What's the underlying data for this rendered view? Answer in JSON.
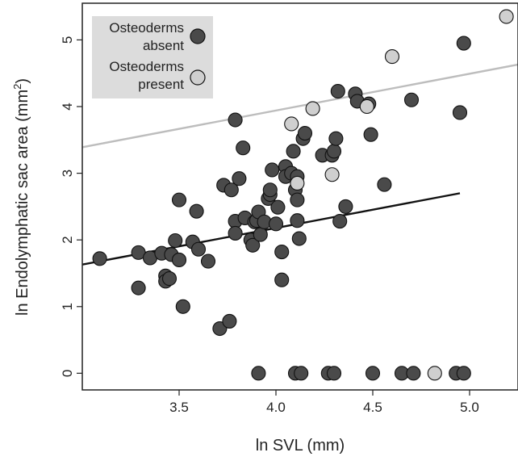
{
  "chart_data": {
    "type": "scatter",
    "xlabel": "ln SVL (mm)",
    "ylabel": {
      "prefix": "ln Endolymphatic sac area (mm",
      "sup": "2",
      "suffix": ")"
    },
    "xlim": [
      3.0,
      5.25
    ],
    "ylim": [
      -0.25,
      5.55
    ],
    "x_ticks": [
      "3.5",
      "4.0",
      "4.5",
      "5.0"
    ],
    "y_ticks": [
      "0",
      "1",
      "2",
      "3",
      "4",
      "5"
    ],
    "grid": false,
    "legend_position": "top-left",
    "series": [
      {
        "name": "Osteoderms absent",
        "legend_line1": "Osteoderms",
        "legend_line2": "absent",
        "color": "#4a4a4a",
        "edge_color": "#111111",
        "trend_color": "#111111",
        "trend_x": [
          3.0,
          4.95
        ],
        "trend_y": [
          1.63,
          2.7
        ],
        "points": [
          [
            3.09,
            1.72
          ],
          [
            3.29,
            1.81
          ],
          [
            3.29,
            1.28
          ],
          [
            3.35,
            1.73
          ],
          [
            3.41,
            1.8
          ],
          [
            3.43,
            1.46
          ],
          [
            3.43,
            1.38
          ],
          [
            3.45,
            1.42
          ],
          [
            3.46,
            1.78
          ],
          [
            3.48,
            1.99
          ],
          [
            3.5,
            2.6
          ],
          [
            3.5,
            1.7
          ],
          [
            3.52,
            1.0
          ],
          [
            3.57,
            1.97
          ],
          [
            3.59,
            2.43
          ],
          [
            3.6,
            1.86
          ],
          [
            3.65,
            1.68
          ],
          [
            3.71,
            0.67
          ],
          [
            3.73,
            2.82
          ],
          [
            3.76,
            0.78
          ],
          [
            3.77,
            2.75
          ],
          [
            3.79,
            2.28
          ],
          [
            3.79,
            3.8
          ],
          [
            3.79,
            2.1
          ],
          [
            3.81,
            2.92
          ],
          [
            3.83,
            3.38
          ],
          [
            3.84,
            2.33
          ],
          [
            3.87,
            2.0
          ],
          [
            3.88,
            1.92
          ],
          [
            3.89,
            2.27
          ],
          [
            3.9,
            2.29
          ],
          [
            3.91,
            2.42
          ],
          [
            3.92,
            2.08
          ],
          [
            3.94,
            2.27
          ],
          [
            3.96,
            2.62
          ],
          [
            3.97,
            2.68
          ],
          [
            3.97,
            2.75
          ],
          [
            3.98,
            3.05
          ],
          [
            4.0,
            2.24
          ],
          [
            4.01,
            2.49
          ],
          [
            4.03,
            1.82
          ],
          [
            4.03,
            1.4
          ],
          [
            4.05,
            3.1
          ],
          [
            4.05,
            2.95
          ],
          [
            4.08,
            3.0
          ],
          [
            4.09,
            3.33
          ],
          [
            4.1,
            2.75
          ],
          [
            4.11,
            2.95
          ],
          [
            4.11,
            2.6
          ],
          [
            4.11,
            2.29
          ],
          [
            4.12,
            2.02
          ],
          [
            4.14,
            3.52
          ],
          [
            4.15,
            3.6
          ],
          [
            4.24,
            3.27
          ],
          [
            4.29,
            3.27
          ],
          [
            4.3,
            3.33
          ],
          [
            4.31,
            3.52
          ],
          [
            4.32,
            4.23
          ],
          [
            4.33,
            2.28
          ],
          [
            4.36,
            2.5
          ],
          [
            4.41,
            4.19
          ],
          [
            4.42,
            4.08
          ],
          [
            4.48,
            4.04
          ],
          [
            4.49,
            3.58
          ],
          [
            4.56,
            2.83
          ],
          [
            4.7,
            4.1
          ],
          [
            4.95,
            3.91
          ],
          [
            4.97,
            4.95
          ],
          [
            3.91,
            0
          ],
          [
            4.1,
            0
          ],
          [
            4.13,
            0
          ],
          [
            4.27,
            0
          ],
          [
            4.3,
            0
          ],
          [
            4.5,
            0
          ],
          [
            4.65,
            0
          ],
          [
            4.71,
            0
          ],
          [
            4.93,
            0
          ],
          [
            4.97,
            0
          ]
        ]
      },
      {
        "name": "Osteoderms present",
        "legend_line1": "Osteoderms",
        "legend_line2": "present",
        "color": "#cfcfcf",
        "edge_color": "#111111",
        "trend_color": "#bdbdbd",
        "trend_x": [
          3.0,
          5.25
        ],
        "trend_y": [
          3.39,
          4.63
        ],
        "points": [
          [
            4.08,
            3.74
          ],
          [
            4.11,
            2.85
          ],
          [
            4.19,
            3.97
          ],
          [
            4.29,
            2.98
          ],
          [
            4.47,
            4.0
          ],
          [
            4.6,
            4.75
          ],
          [
            5.19,
            5.35
          ],
          [
            4.82,
            0
          ]
        ]
      }
    ]
  }
}
